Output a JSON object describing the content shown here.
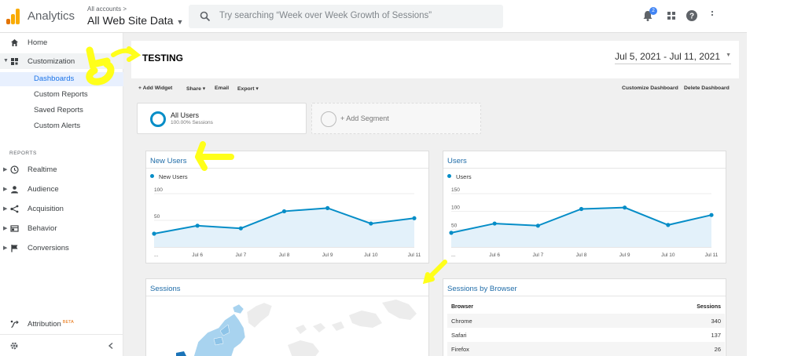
{
  "header": {
    "app_name": "Analytics",
    "account_crumb": "All accounts",
    "property_name": "All Web Site Data",
    "search_placeholder": "Try searching “Week over Week Growth of Sessions”",
    "notification_count": "2",
    "colors": {
      "logo_orange": "#f9ab00",
      "logo_dark": "#e37400",
      "accent": "#4285f4"
    }
  },
  "sidebar": {
    "home": "Home",
    "customization": "Customization",
    "customization_items": [
      "Dashboards",
      "Custom Reports",
      "Saved Reports",
      "Custom Alerts"
    ],
    "reports_heading": "REPORTS",
    "report_items": [
      "Realtime",
      "Audience",
      "Acquisition",
      "Behavior",
      "Conversions"
    ],
    "attribution": "Attribution",
    "attribution_badge": "BETA",
    "icons": [
      "home-icon",
      "customization-icon",
      "clock-icon",
      "person-icon",
      "acquisition-icon",
      "behavior-icon",
      "flag-icon",
      "attribution-icon",
      "gear-icon",
      "chevron-left-icon"
    ]
  },
  "dashboard": {
    "title": "TESTING",
    "date_range": "Jul 5, 2021 - Jul 11, 2021",
    "toolbar": {
      "add_widget": "+ Add Widget",
      "share": "Share",
      "email": "Email",
      "export": "Export",
      "customize": "Customize Dashboard",
      "delete": "Delete Dashboard"
    },
    "segments": {
      "active_name": "All Users",
      "active_sub": "100.00% Sessions",
      "add": "+ Add Segment"
    }
  },
  "widgets": {
    "new_users": {
      "title": "New Users",
      "legend": "New Users"
    },
    "users": {
      "title": "Users",
      "legend": "Users"
    },
    "sessions": {
      "title": "Sessions"
    },
    "sessions_by_browser": {
      "title": "Sessions by Browser",
      "col_browser": "Browser",
      "col_sessions": "Sessions",
      "rows": [
        {
          "browser": "Chrome",
          "sessions": "340"
        },
        {
          "browser": "Safari",
          "sessions": "137"
        },
        {
          "browser": "Firefox",
          "sessions": "26"
        }
      ]
    }
  },
  "chart_data": [
    {
      "type": "line",
      "title": "New Users",
      "x": [
        "...",
        "Jul 6",
        "Jul 7",
        "Jul 8",
        "Jul 9",
        "Jul 10",
        "Jul 11"
      ],
      "series": [
        {
          "name": "New Users",
          "values": [
            25,
            40,
            35,
            67,
            73,
            44,
            54
          ]
        }
      ],
      "ylim": [
        0,
        100
      ],
      "yticks": [
        50,
        100
      ],
      "color": "#058dc7"
    },
    {
      "type": "line",
      "title": "Users",
      "x": [
        "...",
        "Jul 6",
        "Jul 7",
        "Jul 8",
        "Jul 9",
        "Jul 10",
        "Jul 11"
      ],
      "series": [
        {
          "name": "Users",
          "values": [
            40,
            66,
            60,
            107,
            111,
            62,
            90
          ]
        }
      ],
      "ylim": [
        0,
        150
      ],
      "yticks": [
        50,
        100,
        150
      ],
      "color": "#058dc7"
    }
  ]
}
